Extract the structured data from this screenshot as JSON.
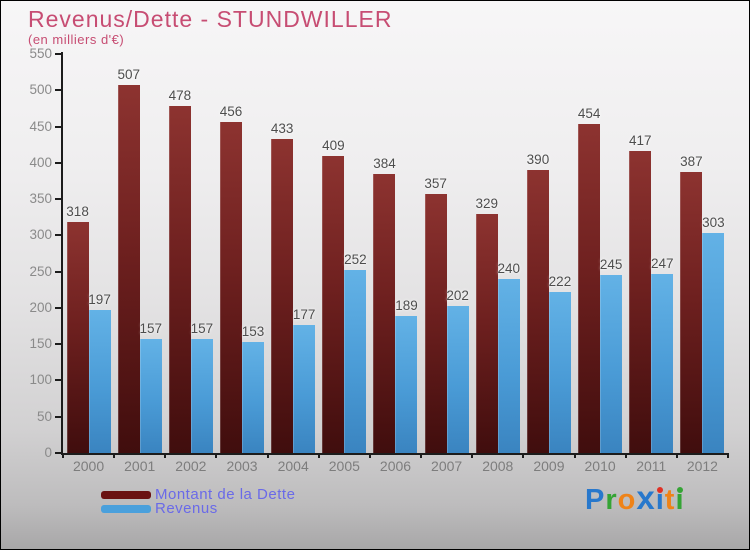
{
  "title": "Revenus/Dette - STUNDWILLER",
  "subtitle": "(en milliers d'€)",
  "colors": {
    "title": "#c74d73",
    "legend_text": "#6a6ae8",
    "axis": "#1c1c1c",
    "tick_label": "#8a8a8a",
    "value_label": "#4d4d4d",
    "dette_top": "#8d3330",
    "dette_mid": "#6e201f",
    "dette_bottom": "#400d0d",
    "revenus_top": "#63b2e6",
    "revenus_mid": "#4a9bd6",
    "revenus_bottom": "#3a84c0",
    "legend_dette_swatch": "#6a1212",
    "legend_revenus_swatch": "#4aa0dc"
  },
  "chart_data": {
    "type": "bar",
    "title": "Revenus/Dette - STUNDWILLER",
    "subtitle": "(en milliers d'€)",
    "categories": [
      "2000",
      "2001",
      "2002",
      "2003",
      "2004",
      "2005",
      "2006",
      "2007",
      "2008",
      "2009",
      "2010",
      "2011",
      "2012"
    ],
    "series": [
      {
        "name": "Montant de la Dette",
        "values": [
          318,
          507,
          478,
          456,
          433,
          409,
          384,
          357,
          329,
          390,
          454,
          417,
          387
        ]
      },
      {
        "name": "Revenus",
        "values": [
          197,
          157,
          157,
          153,
          177,
          252,
          189,
          202,
          240,
          222,
          245,
          247,
          303
        ]
      }
    ],
    "ylim": [
      0,
      550
    ],
    "ytick_step": 50,
    "grid": false,
    "legend_position": "bottom-left",
    "value_labels": true
  },
  "legend": {
    "items": [
      {
        "label": "Montant de la Dette",
        "color": "#6a1212"
      },
      {
        "label": "Revenus",
        "color": "#4aa0dc"
      }
    ]
  },
  "logo": {
    "text": "Proxiti",
    "letters": [
      {
        "ch": "P",
        "color": "#2878cc"
      },
      {
        "ch": "r",
        "color": "#35a435"
      },
      {
        "ch": "o",
        "color": "#ef8318"
      },
      {
        "ch": "x",
        "color": "#2878cc",
        "big": true
      },
      {
        "ch": "i",
        "color": "#2878cc",
        "dot": "#e03024"
      },
      {
        "ch": "t",
        "color": "#ef8318"
      },
      {
        "ch": "i",
        "color": "#35a435",
        "dot": "#35a435"
      }
    ]
  }
}
